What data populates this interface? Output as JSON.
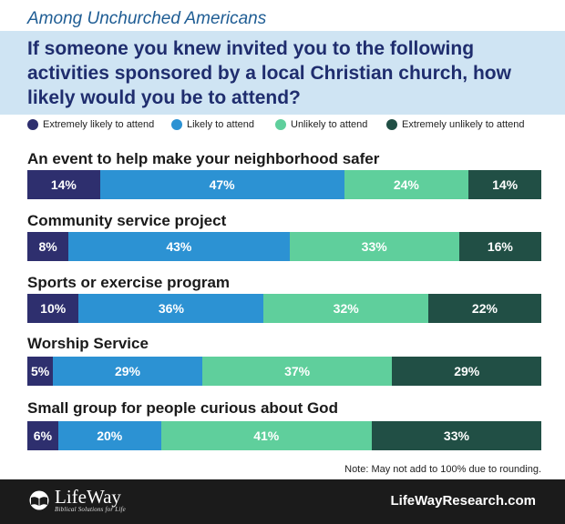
{
  "header": {
    "subtitle": "Among Unchurched Americans",
    "title": "If someone you knew invited you to the following activities sponsored by a local Christian church, how likely would you be to attend?"
  },
  "colors": {
    "extremely_likely": "#2e2f6e",
    "likely": "#2c92d3",
    "unlikely": "#5fcf9c",
    "extremely_unlikely": "#214f45",
    "title_band": "#cfe4f3",
    "footer": "#1b1b1b"
  },
  "chart_data": {
    "type": "bar",
    "orientation": "horizontal",
    "stacked": true,
    "legend": {
      "placement": "top",
      "entries": [
        "Extremely likely to attend",
        "Likely to attend",
        "Unlikely to attend",
        "Extremely unlikely to attend"
      ]
    },
    "categories": [
      "An event to help make your neighborhood safer",
      "Community service project",
      "Sports or exercise program",
      "Worship Service",
      "Small group for people curious about God"
    ],
    "series": [
      {
        "name": "Extremely likely to attend",
        "values": [
          14,
          8,
          10,
          5,
          6
        ]
      },
      {
        "name": "Likely to attend",
        "values": [
          47,
          43,
          36,
          29,
          20
        ]
      },
      {
        "name": "Unlikely to attend",
        "values": [
          24,
          33,
          32,
          37,
          41
        ]
      },
      {
        "name": "Extremely unlikely to attend",
        "values": [
          14,
          16,
          22,
          29,
          33
        ]
      }
    ],
    "value_suffix": "%",
    "annotation": "Note: May not add to 100% due to rounding."
  },
  "footer": {
    "logo_name": "LifeWay",
    "logo_tagline": "Biblical Solutions for Life",
    "website": "LifeWayResearch.com"
  }
}
